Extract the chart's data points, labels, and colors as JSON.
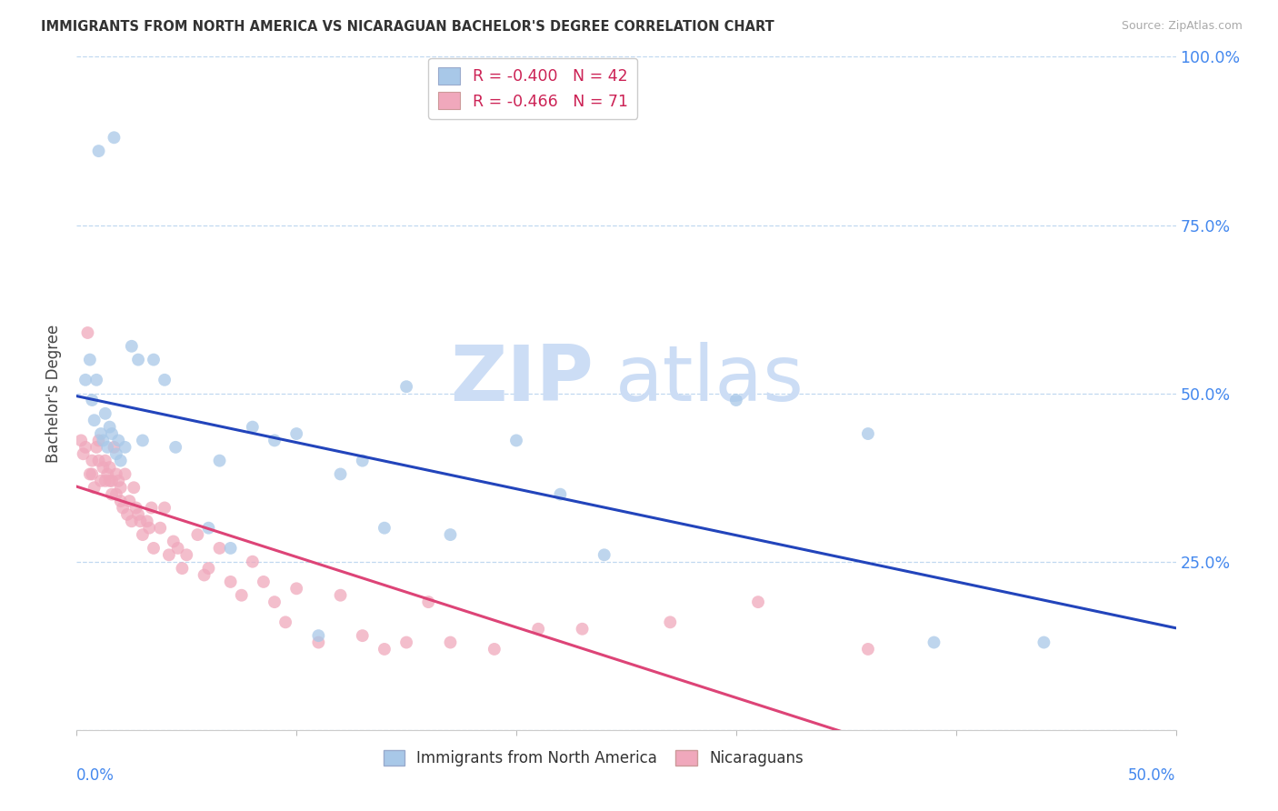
{
  "title": "IMMIGRANTS FROM NORTH AMERICA VS NICARAGUAN BACHELOR'S DEGREE CORRELATION CHART",
  "source": "Source: ZipAtlas.com",
  "ylabel": "Bachelor's Degree",
  "xlim": [
    0.0,
    0.5
  ],
  "ylim": [
    0.0,
    1.0
  ],
  "yticks": [
    0.0,
    0.25,
    0.5,
    0.75,
    1.0
  ],
  "ytick_labels": [
    "",
    "25.0%",
    "50.0%",
    "75.0%",
    "100.0%"
  ],
  "xtick_positions": [
    0.0,
    0.1,
    0.2,
    0.3,
    0.4,
    0.5
  ],
  "legend_label1": "Immigrants from North America",
  "legend_label2": "Nicaraguans",
  "blue_color": "#a8c8e8",
  "pink_color": "#f0a8bc",
  "blue_line_color": "#2244bb",
  "pink_line_color": "#dd4477",
  "right_axis_color": "#4488ee",
  "blue_R": -0.4,
  "blue_N": 42,
  "pink_R": -0.466,
  "pink_N": 71,
  "blue_x": [
    0.004,
    0.006,
    0.007,
    0.008,
    0.009,
    0.01,
    0.011,
    0.012,
    0.013,
    0.014,
    0.015,
    0.016,
    0.017,
    0.018,
    0.019,
    0.02,
    0.022,
    0.025,
    0.028,
    0.03,
    0.035,
    0.04,
    0.045,
    0.06,
    0.065,
    0.07,
    0.08,
    0.09,
    0.1,
    0.11,
    0.12,
    0.13,
    0.14,
    0.15,
    0.17,
    0.2,
    0.22,
    0.24,
    0.3,
    0.36,
    0.39,
    0.44
  ],
  "blue_y": [
    0.52,
    0.55,
    0.49,
    0.46,
    0.52,
    0.86,
    0.44,
    0.43,
    0.47,
    0.42,
    0.45,
    0.44,
    0.88,
    0.41,
    0.43,
    0.4,
    0.42,
    0.57,
    0.55,
    0.43,
    0.55,
    0.52,
    0.42,
    0.3,
    0.4,
    0.27,
    0.45,
    0.43,
    0.44,
    0.14,
    0.38,
    0.4,
    0.3,
    0.51,
    0.29,
    0.43,
    0.35,
    0.26,
    0.49,
    0.44,
    0.13,
    0.13
  ],
  "pink_x": [
    0.002,
    0.003,
    0.004,
    0.005,
    0.006,
    0.007,
    0.007,
    0.008,
    0.009,
    0.01,
    0.01,
    0.011,
    0.012,
    0.013,
    0.013,
    0.014,
    0.015,
    0.015,
    0.016,
    0.016,
    0.017,
    0.018,
    0.018,
    0.019,
    0.02,
    0.02,
    0.021,
    0.022,
    0.023,
    0.024,
    0.025,
    0.026,
    0.027,
    0.028,
    0.029,
    0.03,
    0.032,
    0.033,
    0.034,
    0.035,
    0.038,
    0.04,
    0.042,
    0.044,
    0.046,
    0.048,
    0.05,
    0.055,
    0.058,
    0.06,
    0.065,
    0.07,
    0.075,
    0.08,
    0.085,
    0.09,
    0.095,
    0.1,
    0.11,
    0.12,
    0.13,
    0.14,
    0.15,
    0.16,
    0.17,
    0.19,
    0.21,
    0.23,
    0.27,
    0.31,
    0.36
  ],
  "pink_y": [
    0.43,
    0.41,
    0.42,
    0.59,
    0.38,
    0.38,
    0.4,
    0.36,
    0.42,
    0.4,
    0.43,
    0.37,
    0.39,
    0.37,
    0.4,
    0.38,
    0.37,
    0.39,
    0.35,
    0.37,
    0.42,
    0.38,
    0.35,
    0.37,
    0.34,
    0.36,
    0.33,
    0.38,
    0.32,
    0.34,
    0.31,
    0.36,
    0.33,
    0.32,
    0.31,
    0.29,
    0.31,
    0.3,
    0.33,
    0.27,
    0.3,
    0.33,
    0.26,
    0.28,
    0.27,
    0.24,
    0.26,
    0.29,
    0.23,
    0.24,
    0.27,
    0.22,
    0.2,
    0.25,
    0.22,
    0.19,
    0.16,
    0.21,
    0.13,
    0.2,
    0.14,
    0.12,
    0.13,
    0.19,
    0.13,
    0.12,
    0.15,
    0.15,
    0.16,
    0.19,
    0.12
  ]
}
